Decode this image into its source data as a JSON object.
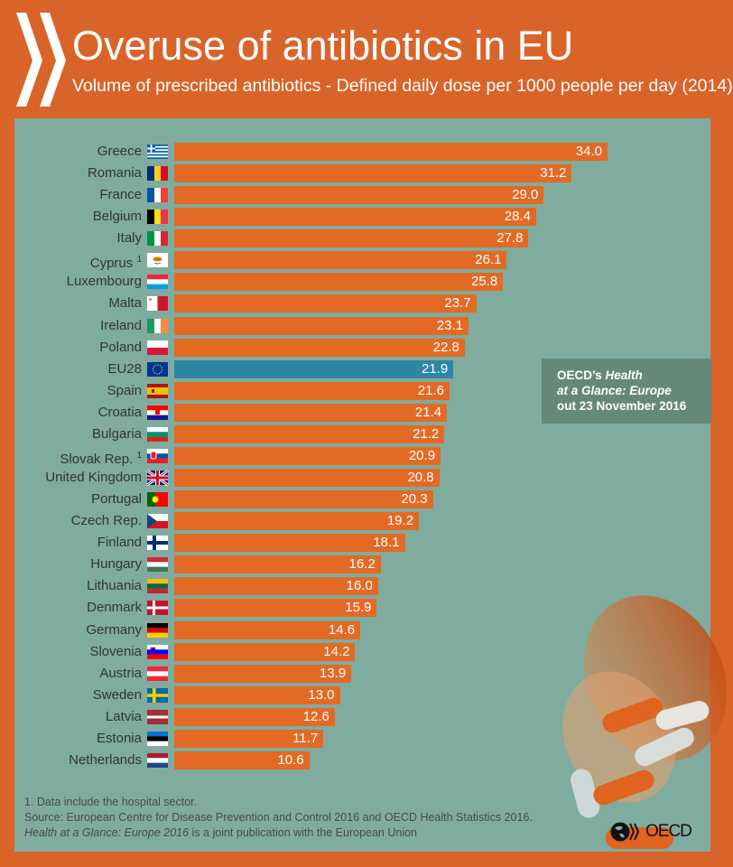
{
  "header": {
    "title": "Overuse of antibiotics in EU",
    "subtitle": "Volume of prescribed antibiotics - Defined daily dose per 1000 people per day (2014)"
  },
  "colors": {
    "background": "#D96429",
    "panel": "#7FAC9E",
    "bar": "#E36A25",
    "eu_bar": "#2E86A4",
    "note_box": "#668879"
  },
  "chart_data": {
    "type": "bar",
    "orientation": "horizontal",
    "title": "Overuse of antibiotics in EU",
    "subtitle": "Volume of prescribed antibiotics - Defined daily dose per 1000 people per day (2014)",
    "categories": [
      "Greece",
      "Romania",
      "France",
      "Belgium",
      "Italy",
      "Cyprus",
      "Luxembourg",
      "Malta",
      "Ireland",
      "Poland",
      "EU28",
      "Spain",
      "Croatia",
      "Bulgaria",
      "Slovak Rep.",
      "United Kingdom",
      "Portugal",
      "Czech Rep.",
      "Finland",
      "Hungary",
      "Lithuania",
      "Denmark",
      "Germany",
      "Slovenia",
      "Austria",
      "Sweden",
      "Latvia",
      "Estonia",
      "Netherlands"
    ],
    "footnote_marks": [
      "",
      "",
      "",
      "",
      "",
      "1",
      "",
      "",
      "",
      "",
      "",
      "",
      "",
      "",
      "1",
      "",
      "",
      "",
      "",
      "",
      "",
      "",
      "",
      "",
      "",
      "",
      "",
      "",
      ""
    ],
    "values": [
      34.0,
      31.2,
      29.0,
      28.4,
      27.8,
      26.1,
      25.8,
      23.7,
      23.1,
      22.8,
      21.9,
      21.6,
      21.4,
      21.2,
      20.9,
      20.8,
      20.3,
      19.2,
      18.1,
      16.2,
      16.0,
      15.9,
      14.6,
      14.2,
      13.9,
      13.0,
      12.6,
      11.7,
      10.6
    ],
    "value_labels": [
      "34.0",
      "31.2",
      "29.0",
      "28.4",
      "27.8",
      "26.1",
      "25.8",
      "23.7",
      "23.1",
      "22.8",
      "21.9",
      "21.6",
      "21.4",
      "21.2",
      "20.9",
      "20.8",
      "20.3",
      "19.2",
      "18.1",
      "16.2",
      "16.0",
      "15.9",
      "14.6",
      "14.2",
      "13.9",
      "13.0",
      "12.6",
      "11.7",
      "10.6"
    ],
    "highlight": "EU28",
    "flag_icons": [
      "greece-flag",
      "romania-flag",
      "france-flag",
      "belgium-flag",
      "italy-flag",
      "cyprus-flag",
      "luxembourg-flag",
      "malta-flag",
      "ireland-flag",
      "poland-flag",
      "eu-flag",
      "spain-flag",
      "croatia-flag",
      "bulgaria-flag",
      "slovakia-flag",
      "uk-flag",
      "portugal-flag",
      "czech-flag",
      "finland-flag",
      "hungary-flag",
      "lithuania-flag",
      "denmark-flag",
      "germany-flag",
      "slovenia-flag",
      "austria-flag",
      "sweden-flag",
      "latvia-flag",
      "estonia-flag",
      "netherlands-flag"
    ],
    "xlim": [
      0,
      34
    ],
    "grid": false,
    "legend": "none"
  },
  "note": {
    "line1_a": "OECD’s ",
    "line1_b": "Health",
    "line2": "at a Glance: Europe",
    "line3": "out 23 November 2016"
  },
  "footer": {
    "footnote": "1. Data include the hospital sector.",
    "source": "Source: European Centre for Disease Prevention and Control 2016 and OECD Health Statistics 2016.",
    "pub_italic": "Health at a Glance: Europe 2016",
    "pub_rest": " is a joint publication with the European Union"
  },
  "logo": {
    "text": "OECD"
  }
}
